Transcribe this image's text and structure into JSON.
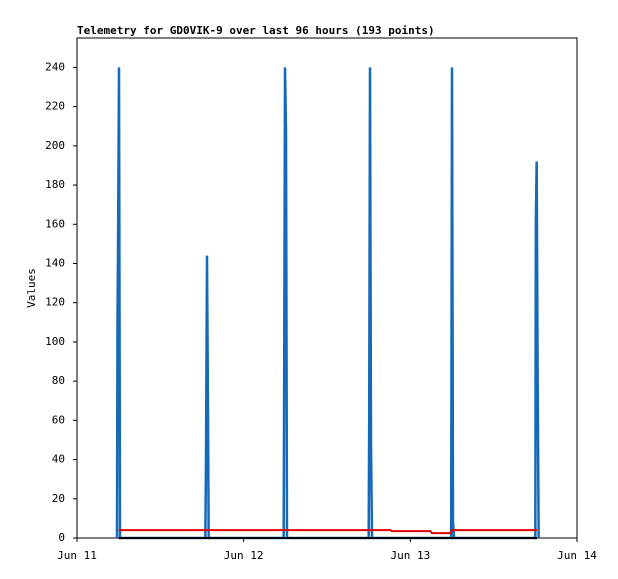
{
  "chart_data": {
    "type": "line",
    "title": "Telemetry for GD0VIK-9 over last 96 hours (193 points)",
    "y_label": "Values",
    "xlim": [
      0,
      3
    ],
    "xticks": [
      {
        "value": 0,
        "label": "Jun 11"
      },
      {
        "value": 1,
        "label": "Jun 12"
      },
      {
        "value": 2,
        "label": "Jun 13"
      },
      {
        "value": 3,
        "label": "Jun 14"
      }
    ],
    "ylim": [
      0,
      255
    ],
    "yticks": [
      0,
      20,
      40,
      60,
      80,
      100,
      120,
      140,
      160,
      180,
      200,
      220,
      240
    ],
    "series": [
      {
        "color": "#1569b8",
        "x": [
          0.24,
          0.243,
          0.246,
          0.252,
          0.258,
          0.77,
          0.774,
          0.78,
          0.786,
          0.79,
          1.24,
          1.243,
          1.248,
          1.254,
          1.26,
          1.75,
          1.753,
          1.758,
          1.764,
          1.77,
          2.245,
          2.25,
          2.256,
          2.262,
          2.75,
          2.753,
          2.758,
          2.764,
          2.77
        ],
        "values": [
          0,
          112,
          144,
          240,
          0,
          0,
          40,
          144,
          64,
          0,
          0,
          80,
          240,
          208,
          0,
          0,
          56,
          240,
          48,
          0,
          0,
          240,
          8,
          0,
          0,
          160,
          192,
          80,
          0
        ]
      },
      {
        "color": "#000000",
        "x": [
          0.25,
          2.76
        ],
        "values": [
          0,
          0
        ]
      },
      {
        "color": "#e00000",
        "x": [
          0.25,
          1.88,
          1.89,
          2.12,
          2.13,
          2.24,
          2.25,
          2.76
        ],
        "values": [
          4,
          4,
          3.5,
          3.5,
          2.5,
          2.5,
          4,
          4
        ]
      }
    ]
  }
}
